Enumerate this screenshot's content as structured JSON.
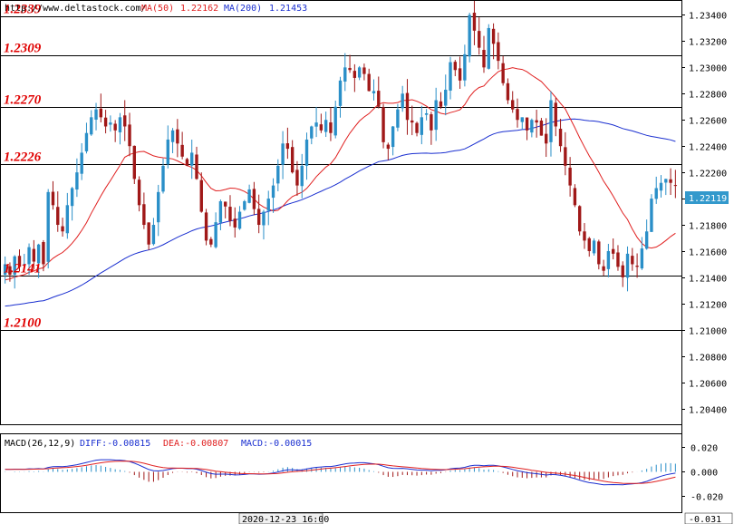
{
  "header": {
    "url": "http://www.deltastock.com/",
    "ma50_label": "MA(50)",
    "ma50_value": "1.22162",
    "ma200_label": "MA(200)",
    "ma200_value": "1.21453"
  },
  "macd_header": {
    "label": "MACD(26,12,9)",
    "diff": "DIFF:-0.00815",
    "dea": "DEA:-0.00807",
    "macd": "MACD:-0.00015"
  },
  "colors": {
    "up": "#2a8fc8",
    "down": "#a01818",
    "ma50": "#e02020",
    "ma200": "#1a2fd0",
    "level": "#e00000",
    "price_tag_bg": "#3399cc"
  },
  "chart_data": [
    {
      "type": "line",
      "name_hint": "price-panel",
      "ylim": [
        1.2028,
        1.235
      ],
      "yticks": [
        "1.23400",
        "1.23200",
        "1.23000",
        "1.22800",
        "1.22600",
        "1.22400",
        "1.22200",
        "1.22000",
        "1.21800",
        "1.21600",
        "1.21400",
        "1.21200",
        "1.21000",
        "1.20800",
        "1.20600",
        "1.20400"
      ],
      "levels": [
        {
          "label": "1.2339",
          "value": 1.2339
        },
        {
          "label": "1.2309",
          "value": 1.2309
        },
        {
          "label": "1.2270",
          "value": 1.227
        },
        {
          "label": "1.2226",
          "value": 1.2226
        },
        {
          "label": "1.2141",
          "value": 1.2141
        },
        {
          "label": "1.2100",
          "value": 1.21
        }
      ],
      "current_price": "1.22119",
      "current_value": 1.22119,
      "closes": [
        1.215,
        1.2142,
        1.2156,
        1.2148,
        1.215,
        1.2163,
        1.2152,
        1.2165,
        1.215,
        1.2205,
        1.2195,
        1.218,
        1.2175,
        1.2195,
        1.2208,
        1.222,
        1.2235,
        1.225,
        1.2262,
        1.2268,
        1.2262,
        1.2255,
        1.2258,
        1.2252,
        1.2262,
        1.2255,
        1.224,
        1.2215,
        1.2195,
        1.218,
        1.2165,
        1.218,
        1.2205,
        1.2225,
        1.2245,
        1.2252,
        1.2242,
        1.2232,
        1.2225,
        1.2235,
        1.2215,
        1.219,
        1.2168,
        1.2165,
        1.2182,
        1.2198,
        1.2194,
        1.2183,
        1.2178,
        1.219,
        1.2198,
        1.2207,
        1.2192,
        1.218,
        1.219,
        1.22,
        1.221,
        1.2225,
        1.2242,
        1.2238,
        1.222,
        1.221,
        1.2225,
        1.2245,
        1.2255,
        1.2258,
        1.2252,
        1.226,
        1.225,
        1.227,
        1.229,
        1.23,
        1.2298,
        1.2292,
        1.23,
        1.2295,
        1.2282,
        1.2282,
        1.227,
        1.2243,
        1.2238,
        1.2255,
        1.2268,
        1.228,
        1.226,
        1.2258,
        1.225,
        1.2262,
        1.2265,
        1.2252,
        1.2275,
        1.227,
        1.2283,
        1.2304,
        1.2298,
        1.229,
        1.231,
        1.234,
        1.2328,
        1.2315,
        1.23,
        1.233,
        1.2318,
        1.2305,
        1.2288,
        1.2275,
        1.2268,
        1.226,
        1.2262,
        1.2252,
        1.226,
        1.2258,
        1.2248,
        1.2242,
        1.2275,
        1.2255,
        1.224,
        1.2225,
        1.221,
        1.2195,
        1.2175,
        1.2168,
        1.216,
        1.2168,
        1.215,
        1.2145,
        1.216,
        1.2158,
        1.2148,
        1.214,
        1.2158,
        1.215,
        1.2148,
        1.2162,
        1.2175,
        1.22,
        1.2208,
        1.2212,
        1.2215,
        1.2212,
        1.221
      ]
    },
    {
      "type": "bar",
      "name_hint": "macd-panel",
      "ylim": [
        -0.033,
        0.03
      ],
      "yticks": [
        "0.020",
        "0.000",
        "-0.020"
      ],
      "bottom_value": "-0.031",
      "date_label": "2020-12-23 16:00"
    }
  ]
}
